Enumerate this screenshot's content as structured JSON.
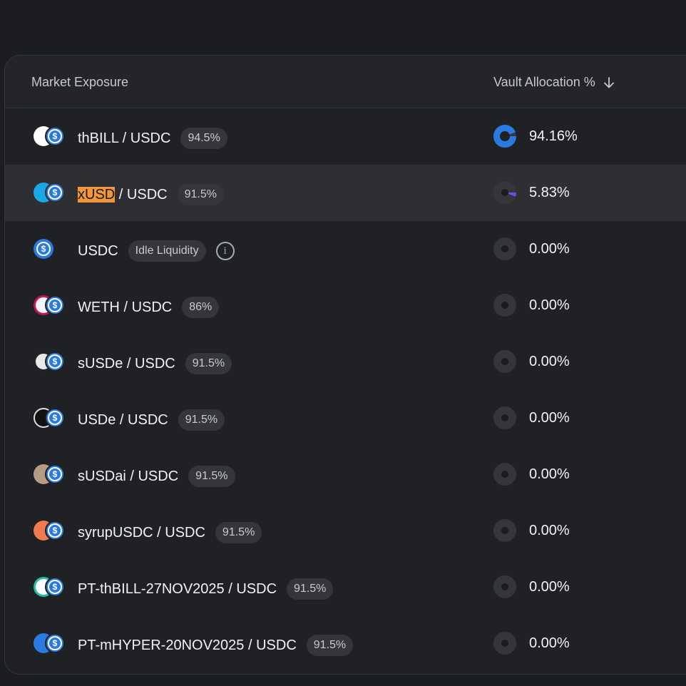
{
  "header": {
    "market_label": "Market Exposure",
    "alloc_label": "Vault Allocation %",
    "sort_icon": "arrow-down-icon"
  },
  "colors": {
    "accent": "#2a7ae2",
    "highlight": "#f0963c",
    "pie_minor": "#6b4ce6"
  },
  "rows": [
    {
      "base": "thBILL",
      "quote": "USDC",
      "sep": " / ",
      "ltv": "94.5%",
      "alloc": "94.16%",
      "alloc_fraction": 0.9416,
      "base_color": "#ffffff"
    },
    {
      "base": "xUSD",
      "quote": "USDC",
      "sep": " / ",
      "ltv": "91.5%",
      "alloc": "5.83%",
      "alloc_fraction": 0.0583,
      "base_color": "#19a7e6"
    },
    {
      "base": "USDC",
      "quote": "",
      "sep": "",
      "ltv": "Idle Liquidity",
      "alloc": "0.00%",
      "alloc_fraction": 0,
      "base_color": "#2a7ae2"
    },
    {
      "base": "WETH",
      "quote": "USDC",
      "sep": " / ",
      "ltv": "86%",
      "alloc": "0.00%",
      "alloc_fraction": 0,
      "base_color": "#f5f5f5"
    },
    {
      "base": "sUSDe",
      "quote": "USDC",
      "sep": " / ",
      "ltv": "91.5%",
      "alloc": "0.00%",
      "alloc_fraction": 0,
      "base_color": "#e8e8e8"
    },
    {
      "base": "USDe",
      "quote": "USDC",
      "sep": " / ",
      "ltv": "91.5%",
      "alloc": "0.00%",
      "alloc_fraction": 0,
      "base_color": "#111111"
    },
    {
      "base": "sUSDai",
      "quote": "USDC",
      "sep": " / ",
      "ltv": "91.5%",
      "alloc": "0.00%",
      "alloc_fraction": 0,
      "base_color": "#b39d83"
    },
    {
      "base": "syrupUSDC",
      "quote": "USDC",
      "sep": " / ",
      "ltv": "91.5%",
      "alloc": "0.00%",
      "alloc_fraction": 0,
      "base_color": "#f07a4e"
    },
    {
      "base": "PT-thBILL-27NOV2025",
      "quote": "USDC",
      "sep": " / ",
      "ltv": "91.5%",
      "alloc": "0.00%",
      "alloc_fraction": 0,
      "base_color": "#1fbfa0"
    },
    {
      "base": "PT-mHYPER-20NOV2025",
      "quote": "USDC",
      "sep": " / ",
      "ltv": "91.5%",
      "alloc": "0.00%",
      "alloc_fraction": 0,
      "base_color": "#2a7ae2"
    }
  ]
}
